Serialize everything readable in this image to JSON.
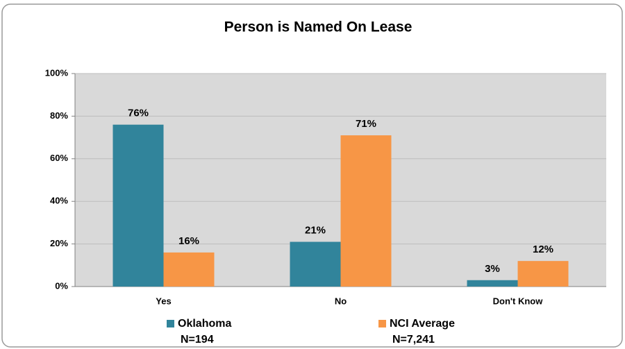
{
  "chart_data": {
    "type": "bar",
    "title": "Person is Named On Lease",
    "categories": [
      "Yes",
      "No",
      "Don't Know"
    ],
    "series": [
      {
        "name": "Oklahoma",
        "legend_note": "N=194",
        "color": "#31849b",
        "values": [
          76,
          21,
          3
        ],
        "value_labels": [
          "76%",
          "21%",
          "3%"
        ]
      },
      {
        "name": "NCI Average",
        "legend_note": "N=7,241",
        "color": "#f79646",
        "values": [
          16,
          71,
          12
        ],
        "value_labels": [
          "16%",
          "71%",
          "12%"
        ]
      }
    ],
    "ylim": [
      0,
      100
    ],
    "yticks": [
      {
        "value": 0,
        "label": "0%"
      },
      {
        "value": 20,
        "label": "20%"
      },
      {
        "value": 40,
        "label": "40%"
      },
      {
        "value": 60,
        "label": "60%"
      },
      {
        "value": 80,
        "label": "80%"
      },
      {
        "value": 100,
        "label": "100%"
      }
    ],
    "grid": true,
    "legend": "bottom"
  }
}
